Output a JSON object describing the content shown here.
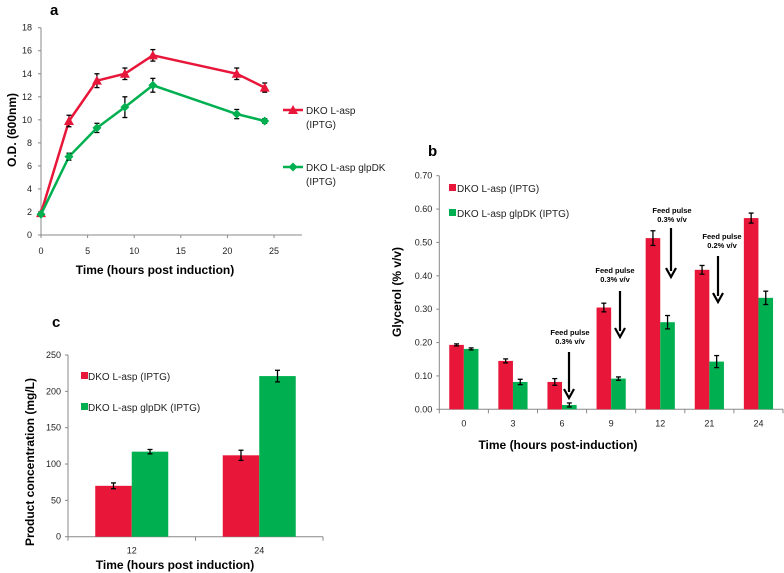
{
  "colors": {
    "red": "#e8173a",
    "green": "#00b050",
    "axis": "#888888"
  },
  "chart_data": [
    {
      "id": "a",
      "type": "line",
      "panel_label": "a",
      "xlabel": "Time (hours post induction)",
      "ylabel": "O.D. (600nm)",
      "xlim": [
        0,
        28
      ],
      "ylim": [
        0,
        18
      ],
      "xticks": [
        0,
        5,
        10,
        15,
        20,
        25
      ],
      "yticks": [
        0,
        2,
        4,
        6,
        8,
        10,
        12,
        14,
        16,
        18
      ],
      "x": [
        0,
        3,
        6,
        9,
        12,
        21,
        24
      ],
      "legend_position": "right",
      "series": [
        {
          "name": "DKO L-asp",
          "name2": "(IPTG)",
          "marker": "triangle",
          "color": "#e8173a",
          "values": [
            1.9,
            9.9,
            13.4,
            14.0,
            15.6,
            14.0,
            12.8
          ],
          "errors": [
            0.1,
            0.5,
            0.6,
            0.5,
            0.5,
            0.5,
            0.4
          ]
        },
        {
          "name": "DKO L-asp glpDK",
          "name2": "(IPTG)",
          "marker": "diamond",
          "color": "#00b050",
          "values": [
            1.8,
            6.8,
            9.3,
            11.1,
            13.0,
            10.5,
            9.9
          ],
          "errors": [
            0.1,
            0.3,
            0.4,
            0.9,
            0.6,
            0.4,
            0.2
          ]
        }
      ]
    },
    {
      "id": "b",
      "type": "bar",
      "panel_label": "b",
      "xlabel": "Time (hours post-induction)",
      "ylabel": "Glycerol (% v/v)",
      "ylim": [
        0,
        0.7
      ],
      "yticks": [
        "0.00",
        "0.10",
        "0.20",
        "0.30",
        "0.40",
        "0.50",
        "0.60",
        "0.70"
      ],
      "categories": [
        "0",
        "3",
        "6",
        "9",
        "12",
        "21",
        "24"
      ],
      "legend_position": "top-left",
      "series": [
        {
          "name": "DKO L-asp (IPTG)",
          "color": "#e8173a",
          "values": [
            0.193,
            0.145,
            0.082,
            0.305,
            0.513,
            0.418,
            0.573
          ],
          "errors": [
            0.003,
            0.006,
            0.01,
            0.013,
            0.022,
            0.013,
            0.015
          ]
        },
        {
          "name": "DKO L-asp glpDK (IPTG)",
          "color": "#00b050",
          "values": [
            0.181,
            0.082,
            0.013,
            0.092,
            0.261,
            0.143,
            0.334
          ],
          "errors": [
            0.003,
            0.008,
            0.006,
            0.005,
            0.02,
            0.018,
            0.02
          ]
        }
      ],
      "annotations": [
        {
          "category": "6",
          "line1": "Feed pulse",
          "line2": "0.3% v/v"
        },
        {
          "category": "9",
          "line1": "Feed pulse",
          "line2": "0.3% v/v"
        },
        {
          "category": "12",
          "line1": "Feed pulse",
          "line2": "0.3% v/v"
        },
        {
          "category": "21",
          "line1": "Feed pulse",
          "line2": "0.2% v/v"
        }
      ]
    },
    {
      "id": "c",
      "type": "bar",
      "panel_label": "c",
      "xlabel": "Time (hours post induction)",
      "ylabel": "Product concentration (mg/L)",
      "ylim": [
        0,
        250
      ],
      "yticks": [
        "0",
        "50",
        "100",
        "150",
        "200",
        "250"
      ],
      "categories": [
        "12",
        "24"
      ],
      "legend_position": "top-left",
      "series": [
        {
          "name": "DKO  L-asp (IPTG)",
          "color": "#e8173a",
          "values": [
            70,
            112
          ],
          "errors": [
            4,
            7
          ]
        },
        {
          "name": "DKO  L-asp glpDK (IPTG)",
          "color": "#00b050",
          "values": [
            117,
            221
          ],
          "errors": [
            3,
            8
          ]
        }
      ]
    }
  ]
}
